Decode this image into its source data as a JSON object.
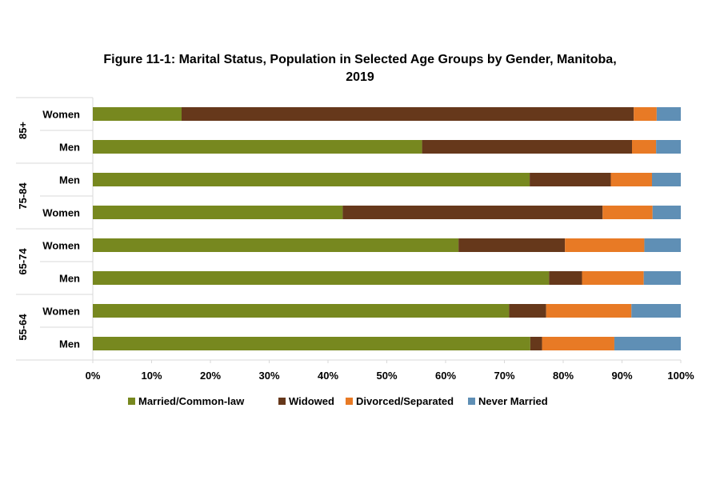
{
  "chart_data": {
    "type": "bar",
    "orientation": "horizontal",
    "stacked": "percent",
    "title": "Figure 11-1: Marital Status, Population in Selected Age Groups by Gender, Manitoba,",
    "title_line2": "2019",
    "xlabel": "",
    "ylabel": "",
    "xlim": [
      0,
      100
    ],
    "x_ticks": [
      "0%",
      "10%",
      "20%",
      "30%",
      "40%",
      "50%",
      "60%",
      "70%",
      "80%",
      "90%",
      "100%"
    ],
    "grid": false,
    "legend_position": "bottom",
    "groups": [
      {
        "label": "85+",
        "categories": [
          "Women",
          "Men"
        ]
      },
      {
        "label": "75-84",
        "categories": [
          "Men",
          "Women"
        ]
      },
      {
        "label": "65-74",
        "categories": [
          "Women",
          "Men"
        ]
      },
      {
        "label": "55-64",
        "categories": [
          "Women",
          "Men"
        ]
      }
    ],
    "categories": [
      "85+ Women",
      "85+ Men",
      "75-84 Men",
      "75-84 Women",
      "65-74 Women",
      "65-74 Men",
      "55-64 Women",
      "55-64 Men"
    ],
    "series": [
      {
        "name": "Married/Common-law",
        "color": "#77881f",
        "values": [
          15.1,
          56.0,
          74.3,
          42.5,
          62.2,
          77.6,
          70.8,
          74.4
        ]
      },
      {
        "name": "Widowed",
        "color": "#66381b",
        "values": [
          76.9,
          35.7,
          13.8,
          44.2,
          18.1,
          5.6,
          6.3,
          2.0
        ]
      },
      {
        "name": "Divorced/Separated",
        "color": "#e87a25",
        "values": [
          3.9,
          4.1,
          7.0,
          8.5,
          13.5,
          10.5,
          14.5,
          12.3
        ]
      },
      {
        "name": "Never Married",
        "color": "#5f8fb5",
        "values": [
          4.1,
          4.2,
          4.9,
          4.8,
          6.2,
          6.3,
          8.4,
          11.3
        ]
      }
    ]
  }
}
